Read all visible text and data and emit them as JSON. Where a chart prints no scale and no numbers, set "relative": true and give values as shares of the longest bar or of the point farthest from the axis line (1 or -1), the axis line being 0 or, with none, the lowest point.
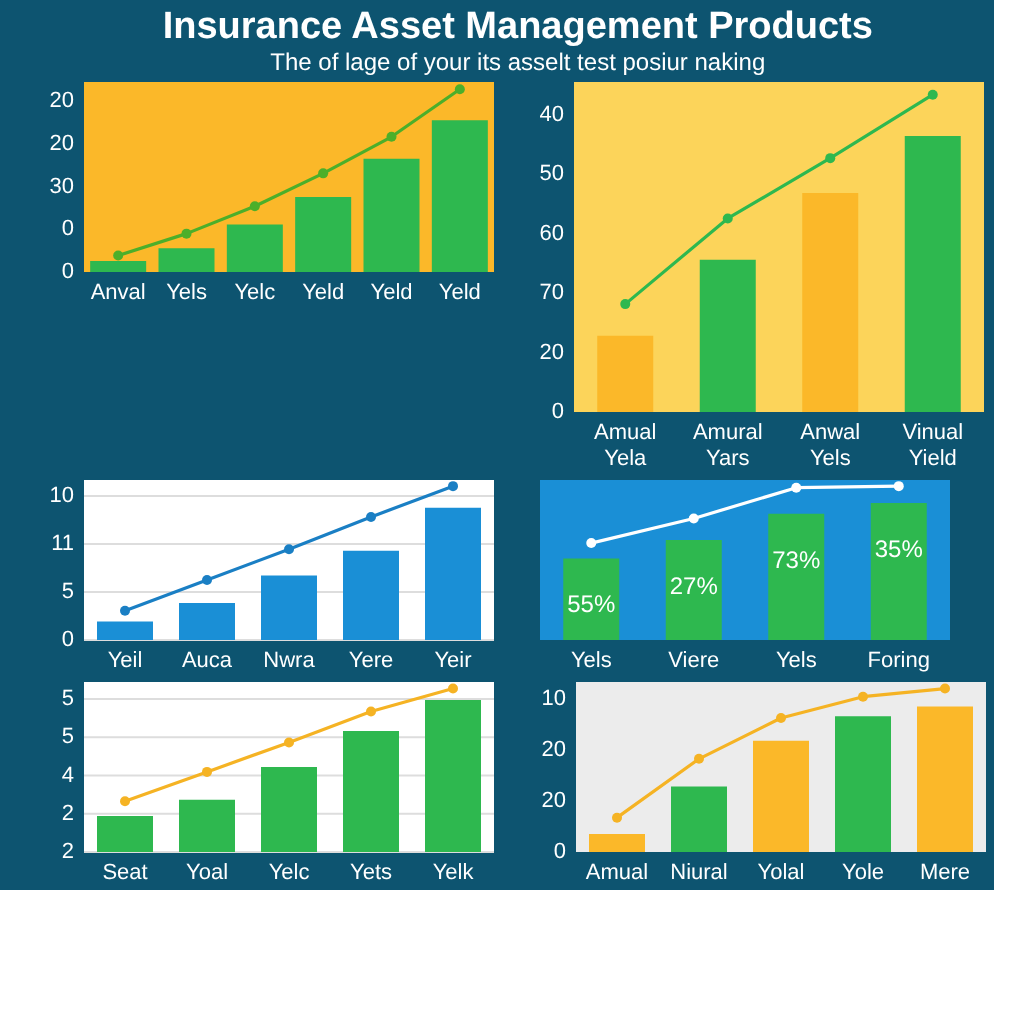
{
  "chart_data": [
    {
      "type": "bar",
      "title": "Insurance Asset Management Products",
      "subtitle": "The of lage of your its asselt test posiur naking",
      "relative": true,
      "categories": [
        "Anval",
        "Yels",
        "Yelc",
        "Yeld",
        "Yeld",
        "Yeld"
      ],
      "annotations": [
        "0",
        "0",
        "30",
        "20",
        "20"
      ],
      "grid": false,
      "marker": "circle",
      "series": [
        {
          "color": "#2eb84f",
          "values": [
            0.06,
            0.13,
            0.26,
            0.41,
            0.62,
            0.83
          ]
        },
        {
          "type": "line",
          "color": "#4caf2a",
          "values": [
            0.09,
            0.21,
            0.36,
            0.54,
            0.74,
            1
          ]
        }
      ]
    },
    {
      "type": "bar",
      "relative": true,
      "categories": [
        "Amual\nYela",
        "Amural\nYars",
        "Anwal\nYels",
        "Vinual\nYield"
      ],
      "annotations": [
        "0",
        "20",
        "70",
        "60",
        "50",
        "40"
      ],
      "grid": false,
      "marker": "circle",
      "series": [
        {
          "colors": [
            "#fbb829",
            "#2eb84f",
            "#fbb829",
            "#2eb84f"
          ],
          "values": [
            0.24,
            0.48,
            0.69,
            0.87
          ]
        },
        {
          "type": "line",
          "color": "#2eb84f",
          "values": [
            0.34,
            0.61,
            0.8,
            1
          ]
        }
      ]
    },
    {
      "type": "bar",
      "relative": true,
      "categories": [
        "Yeil",
        "Auca",
        "Nwra",
        "Yere",
        "Yeir"
      ],
      "annotations": [
        "0",
        "5",
        "11",
        "10"
      ],
      "grid": "y",
      "marker": "circle",
      "series": [
        {
          "color": "#1a8fd6",
          "values": [
            0.12,
            0.24,
            0.42,
            0.58,
            0.86
          ]
        },
        {
          "type": "line",
          "color": "#1a7fc4",
          "values": [
            0.19,
            0.39,
            0.59,
            0.8,
            1
          ]
        }
      ]
    },
    {
      "type": "bar",
      "relative": true,
      "categories": [
        "Yels",
        "Viere",
        "Yels",
        "Foring"
      ],
      "annotations": [
        "55%",
        "27%",
        "73%",
        "35%"
      ],
      "grid": false,
      "marker": "circle",
      "series": [
        {
          "color": "#2eb84f",
          "values": [
            0.53,
            0.65,
            0.82,
            0.89
          ]
        },
        {
          "type": "line",
          "color": "#ffffff",
          "values": [
            0.63,
            0.79,
            0.99,
            1
          ]
        }
      ]
    },
    {
      "type": "bar",
      "relative": true,
      "categories": [
        "Seat",
        "Yoal",
        "Yelc",
        "Yets",
        "Yelk"
      ],
      "annotations": [
        "2",
        "2",
        "4",
        "5",
        "5"
      ],
      "grid": "y",
      "marker": "circle",
      "series": [
        {
          "color": "#2eb84f",
          "values": [
            0.22,
            0.32,
            0.52,
            0.74,
            0.93
          ]
        },
        {
          "type": "line",
          "color": "#f5b324",
          "values": [
            0.31,
            0.49,
            0.67,
            0.86,
            1
          ]
        }
      ]
    },
    {
      "type": "bar",
      "relative": true,
      "categories": [
        "Amual",
        "Niural",
        "Yolal",
        "Yole",
        "Mere"
      ],
      "annotations": [
        "0",
        "20",
        "20",
        "10"
      ],
      "grid": false,
      "marker": "circle",
      "series": [
        {
          "colors": [
            "#fbb829",
            "#2eb84f",
            "#fbb829",
            "#2eb84f",
            "#fbb829"
          ],
          "values": [
            0.11,
            0.4,
            0.68,
            0.83,
            0.89
          ]
        },
        {
          "type": "line",
          "color": "#f5b324",
          "values": [
            0.21,
            0.57,
            0.82,
            0.95,
            1
          ]
        }
      ]
    }
  ]
}
